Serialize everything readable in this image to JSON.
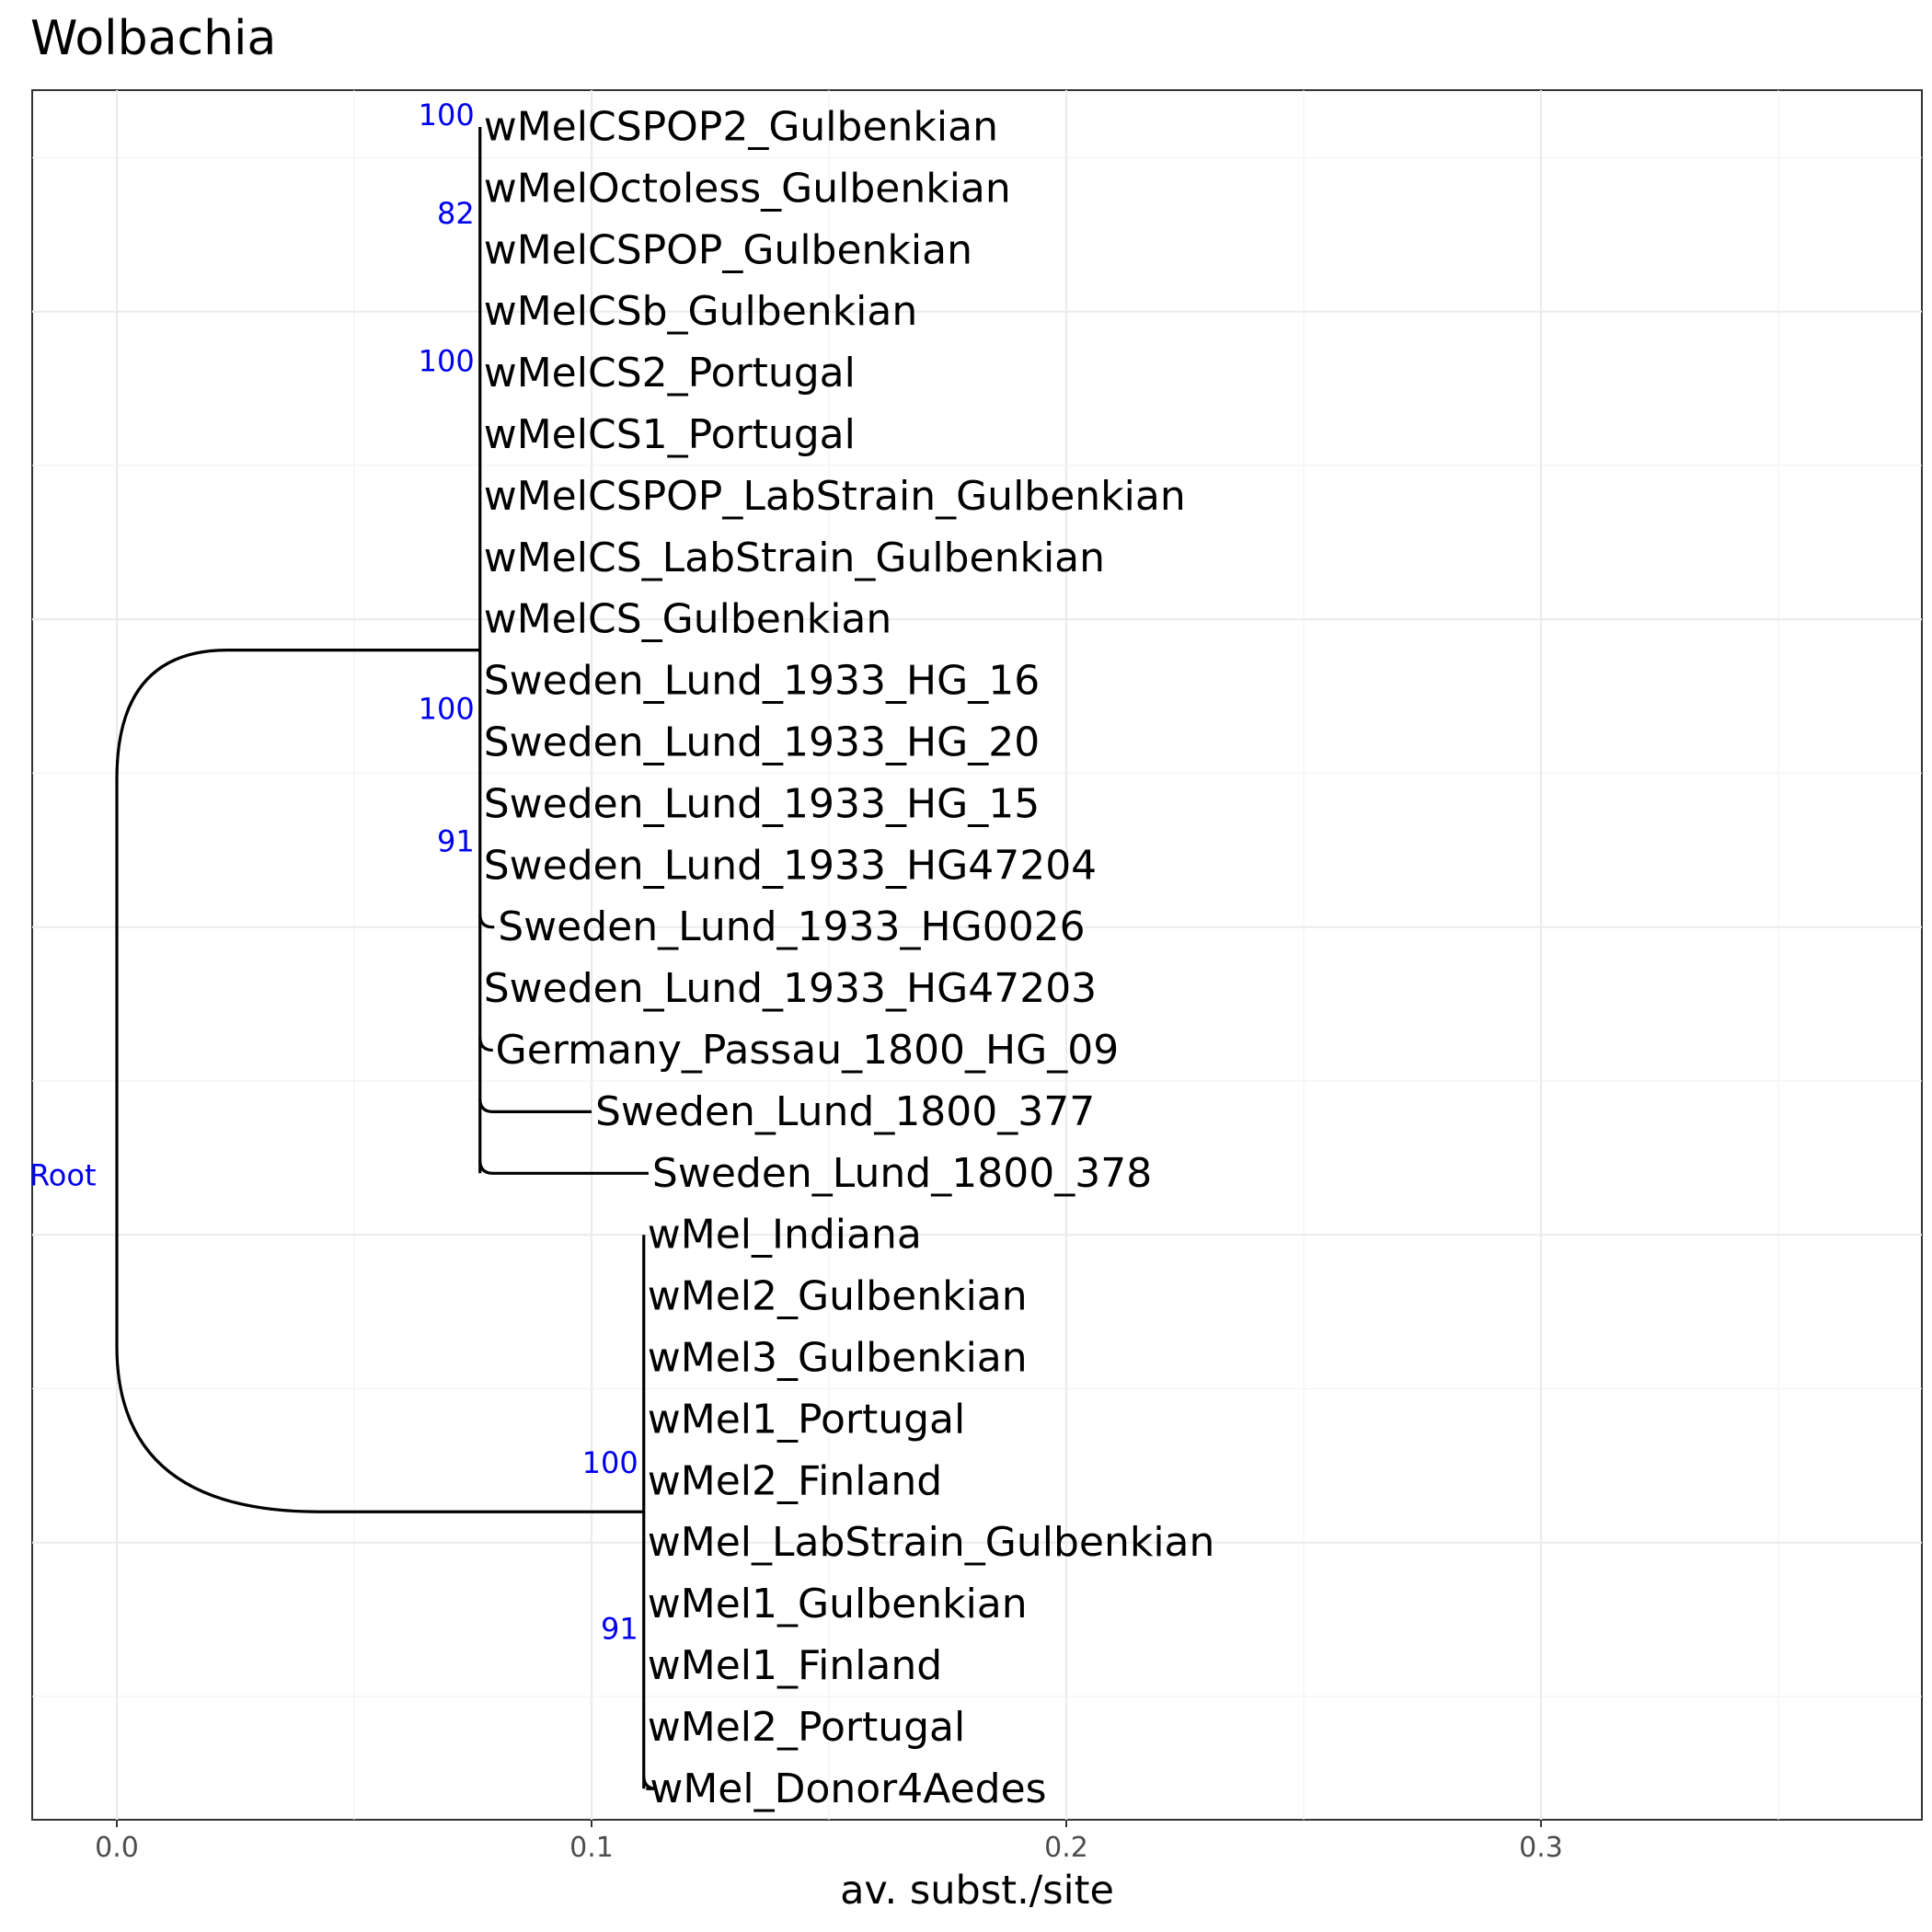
{
  "title": "Wolbachia",
  "x_axis": {
    "label": "av. subst./site",
    "ticks": [
      0.0,
      0.1,
      0.2,
      0.3
    ],
    "tick_labels": [
      "0.0",
      "0.1",
      "0.2",
      "0.3"
    ],
    "range": [
      -0.018,
      0.38
    ]
  },
  "tree": {
    "root_label": "Root",
    "tips": [
      {
        "label": "wMelCSPOP2_Gulbenkian",
        "x": 0.0765
      },
      {
        "label": "wMelOctoless_Gulbenkian",
        "x": 0.0765
      },
      {
        "label": "wMelCSPOP_Gulbenkian",
        "x": 0.0765
      },
      {
        "label": "wMelCSb_Gulbenkian",
        "x": 0.0765
      },
      {
        "label": "wMelCS2_Portugal",
        "x": 0.0765
      },
      {
        "label": "wMelCS1_Portugal",
        "x": 0.0765
      },
      {
        "label": "wMelCSPOP_LabStrain_Gulbenkian",
        "x": 0.0765
      },
      {
        "label": "wMelCS_LabStrain_Gulbenkian",
        "x": 0.0765
      },
      {
        "label": "wMelCS_Gulbenkian",
        "x": 0.0765
      },
      {
        "label": "Sweden_Lund_1933_HG_16",
        "x": 0.0765
      },
      {
        "label": "Sweden_Lund_1933_HG_20",
        "x": 0.0765
      },
      {
        "label": "Sweden_Lund_1933_HG_15",
        "x": 0.0765
      },
      {
        "label": "Sweden_Lund_1933_HG47204",
        "x": 0.0765
      },
      {
        "label": "Sweden_Lund_1933_HG0026",
        "x": 0.0795
      },
      {
        "label": "Sweden_Lund_1933_HG47203",
        "x": 0.0765
      },
      {
        "label": "Germany_Passau_1800_HG_09",
        "x": 0.079
      },
      {
        "label": "Sweden_Lund_1800_377",
        "x": 0.1
      },
      {
        "label": "Sweden_Lund_1800_378",
        "x": 0.112
      },
      {
        "label": "wMel_Indiana",
        "x": 0.111
      },
      {
        "label": "wMel2_Gulbenkian",
        "x": 0.111
      },
      {
        "label": "wMel3_Gulbenkian",
        "x": 0.111
      },
      {
        "label": "wMel1_Portugal",
        "x": 0.111
      },
      {
        "label": "wMel2_Finland",
        "x": 0.111
      },
      {
        "label": "wMel_LabStrain_Gulbenkian",
        "x": 0.111
      },
      {
        "label": "wMel1_Gulbenkian",
        "x": 0.111
      },
      {
        "label": "wMel1_Finland",
        "x": 0.111
      },
      {
        "label": "wMel2_Portugal",
        "x": 0.111
      },
      {
        "label": "wMel_Donor4Aedes",
        "x": 0.1115
      }
    ],
    "clade_wMelCS": {
      "node_x": 0.0765,
      "tip_range": [
        0,
        17
      ]
    },
    "clade_wMel": {
      "node_x": 0.111,
      "tip_range": [
        18,
        27
      ]
    },
    "bootstrap_labels": [
      {
        "text": "100",
        "x": 0.0765,
        "tip_pos": 0.0
      },
      {
        "text": "82",
        "x": 0.0765,
        "tip_pos": 1.6
      },
      {
        "text": "100",
        "x": 0.0765,
        "tip_pos": 4.0
      },
      {
        "text": "100",
        "x": 0.0765,
        "tip_pos": 9.65
      },
      {
        "text": "91",
        "x": 0.0765,
        "tip_pos": 11.8
      },
      {
        "text": "100",
        "x": 0.111,
        "tip_pos": 21.9
      },
      {
        "text": "91",
        "x": 0.111,
        "tip_pos": 24.6
      }
    ]
  }
}
